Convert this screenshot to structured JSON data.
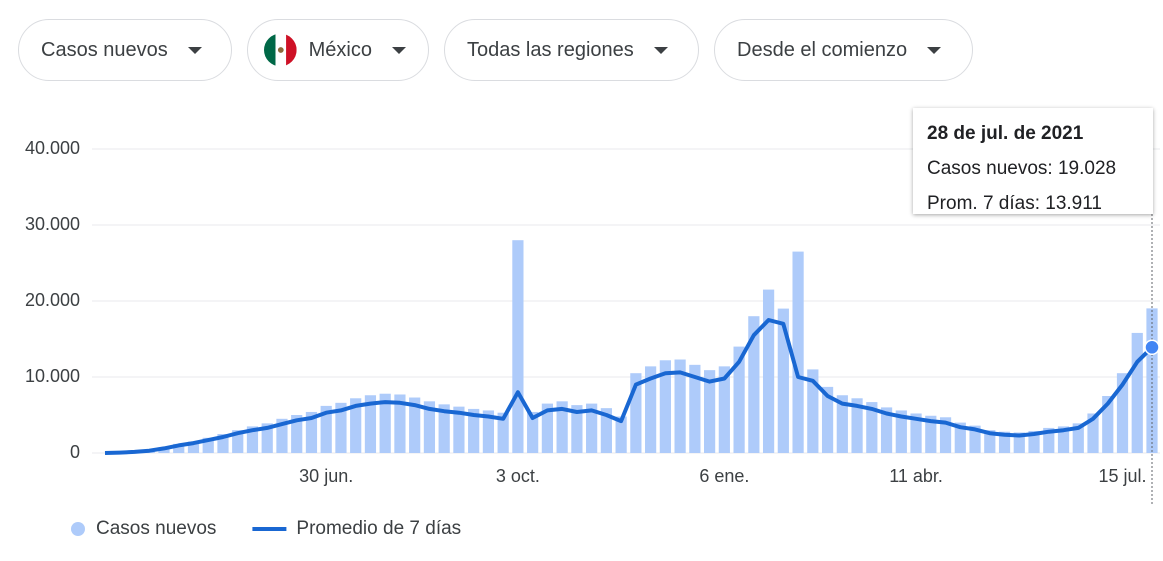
{
  "controls": [
    "Casos nuevos",
    "México",
    "Todas las regiones",
    "Desde el comienzo"
  ],
  "chart_data": {
    "type": "bar",
    "categories": [
      null,
      null,
      null,
      null,
      null,
      null,
      null,
      null,
      null,
      null,
      null,
      null,
      null,
      null,
      null,
      "30 jun.",
      null,
      null,
      null,
      null,
      null,
      null,
      null,
      null,
      null,
      null,
      null,
      null,
      "3 oct.",
      null,
      null,
      null,
      null,
      null,
      null,
      null,
      null,
      null,
      null,
      null,
      null,
      null,
      "6 ene.",
      null,
      null,
      null,
      null,
      null,
      null,
      null,
      null,
      null,
      null,
      null,
      null,
      "11 abr.",
      null,
      null,
      null,
      null,
      null,
      null,
      null,
      null,
      null,
      null,
      null,
      null,
      null,
      "15 jul.",
      null,
      null
    ],
    "series": [
      {
        "name": "Casos nuevos",
        "type": "bar",
        "color": "#aecbfa",
        "values": [
          0,
          80,
          200,
          400,
          750,
          1200,
          1500,
          2000,
          2500,
          3000,
          3500,
          3900,
          4500,
          5000,
          5400,
          6200,
          6600,
          7200,
          7600,
          7800,
          7700,
          7300,
          6800,
          6400,
          6100,
          5800,
          5600,
          5300,
          28000,
          5400,
          6500,
          6800,
          6300,
          6500,
          5900,
          4800,
          10500,
          11400,
          12200,
          12300,
          11600,
          10900,
          11400,
          14000,
          18000,
          21500,
          19000,
          26500,
          11000,
          8700,
          7600,
          7200,
          6700,
          6000,
          5600,
          5200,
          4900,
          4700,
          4000,
          3600,
          3000,
          2800,
          2700,
          2900,
          3300,
          3500,
          3900,
          5200,
          7500,
          10500,
          15800,
          19028
        ]
      },
      {
        "name": "Promedio de 7 días",
        "type": "line",
        "color": "#1967d2",
        "values": [
          0,
          50,
          150,
          300,
          600,
          1000,
          1300,
          1700,
          2100,
          2600,
          3000,
          3300,
          3800,
          4300,
          4600,
          5300,
          5600,
          6200,
          6500,
          6700,
          6600,
          6300,
          5800,
          5500,
          5300,
          5000,
          4800,
          4500,
          8000,
          4600,
          5600,
          5800,
          5400,
          5600,
          5000,
          4200,
          9000,
          9800,
          10500,
          10600,
          10000,
          9400,
          9800,
          12000,
          15500,
          17500,
          17000,
          10000,
          9500,
          7500,
          6500,
          6200,
          5800,
          5200,
          4800,
          4500,
          4200,
          4000,
          3400,
          3100,
          2600,
          2400,
          2300,
          2500,
          2800,
          3000,
          3300,
          4500,
          6500,
          9000,
          12000,
          13911
        ]
      }
    ],
    "ylim": [
      0,
      40000
    ],
    "yticks": [
      0,
      {
        "value": 10000,
        "label": "10.000"
      },
      {
        "value": 20000,
        "label": "20.000"
      },
      {
        "value": 30000,
        "label": "30.000"
      },
      {
        "value": 40000,
        "label": "40.000"
      }
    ],
    "grid": true
  },
  "tooltip": {
    "title": "28 de jul. de 2021",
    "lines": [
      "Casos nuevos: 19.028",
      "Prom. 7 días: 13.911"
    ]
  }
}
